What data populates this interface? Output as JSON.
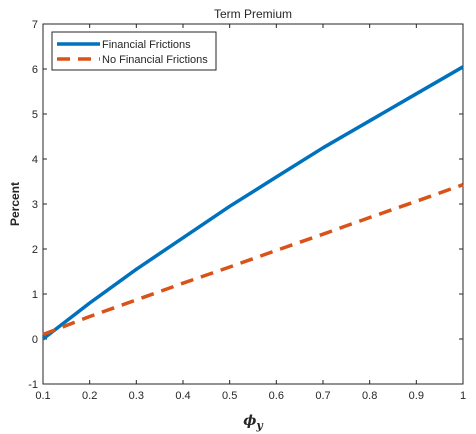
{
  "chart_data": {
    "type": "line",
    "title": "Term Premium",
    "xlabel": "ϕy",
    "ylabel": "Percent",
    "xlim": [
      0.1,
      1
    ],
    "ylim": [
      -1,
      7
    ],
    "xticks": [
      "0.1",
      "0.2",
      "0.3",
      "0.4",
      "0.5",
      "0.6",
      "0.7",
      "0.8",
      "0.9",
      "1"
    ],
    "yticks": [
      "-1",
      "0",
      "1",
      "2",
      "3",
      "4",
      "5",
      "6",
      "7"
    ],
    "grid": false,
    "legend_position": "top-left",
    "series": [
      {
        "name": "Financial Frictions",
        "color": "#0072BD",
        "style": "solid",
        "x": [
          0.1,
          0.2,
          0.3,
          0.4,
          0.5,
          0.6,
          0.7,
          0.8,
          0.9,
          1.0
        ],
        "y": [
          0.0,
          0.8,
          1.55,
          2.25,
          2.95,
          3.6,
          4.25,
          4.85,
          5.45,
          6.05
        ]
      },
      {
        "name": "No Financial Frictions",
        "color": "#D95319",
        "style": "dashed",
        "x": [
          0.1,
          0.2,
          0.3,
          0.4,
          0.5,
          0.6,
          0.7,
          0.8,
          0.9,
          1.0
        ],
        "y": [
          0.1,
          0.5,
          0.87,
          1.24,
          1.6,
          1.97,
          2.33,
          2.7,
          3.06,
          3.43
        ]
      }
    ]
  }
}
